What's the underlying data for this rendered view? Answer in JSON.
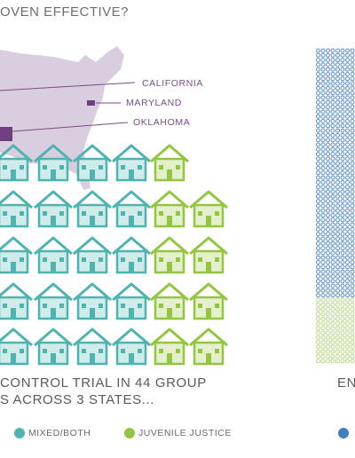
{
  "header": {
    "title": "OVEN EFFECTIVE?"
  },
  "map": {
    "states": [
      "CALIFORNIA",
      "MARYLAND",
      "OKLAHOMA"
    ]
  },
  "summary": [
    "CONTROL TRIAL IN 44 GROUP",
    "S ACROSS 3 STATES..."
  ],
  "right_summary": "EN",
  "legend": [
    "MIXED/BOTH",
    "JUVENILE JUSTICE"
  ]
}
